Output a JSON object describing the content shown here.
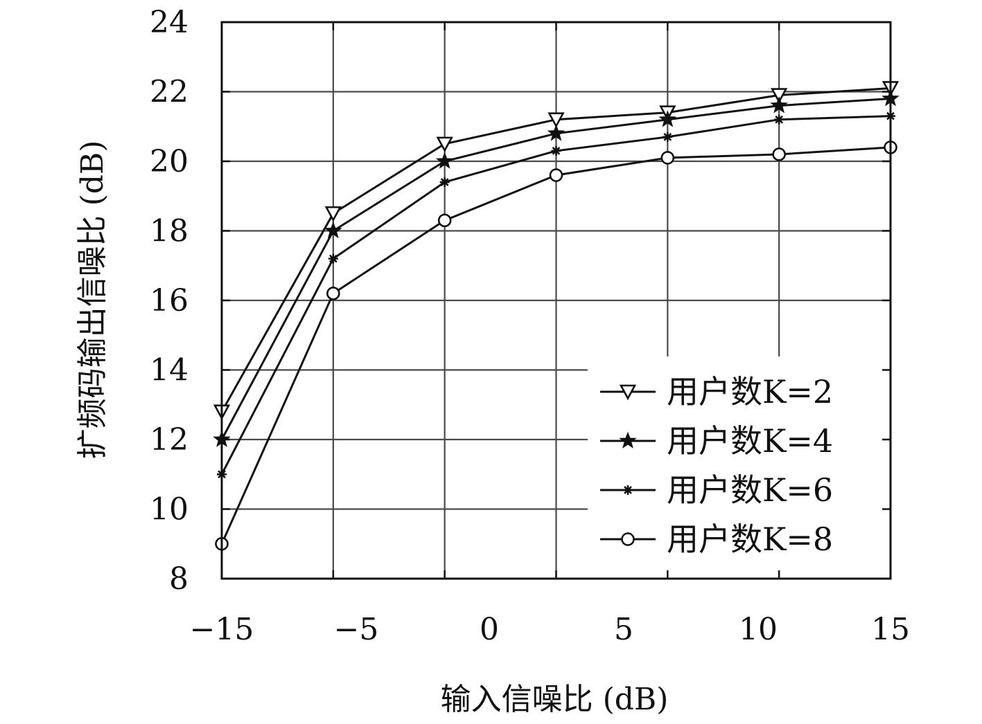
{
  "chart_data": {
    "type": "line",
    "title": "",
    "xlabel": "输入信噪比 (dB)",
    "ylabel": "扩频码输出信噪比 (dB)",
    "xticks": [
      "−15",
      "−5",
      "0",
      "5",
      "10",
      "15"
    ],
    "yticks": [
      "8",
      "10",
      "12",
      "14",
      "16",
      "18",
      "20",
      "22",
      "24"
    ],
    "ylim": [
      8,
      24
    ],
    "grid": true,
    "legend_position": "bottom-right",
    "series": [
      {
        "name": "用户数K=2",
        "marker": "triangle-down",
        "values": [
          12.8,
          18.5,
          20.5,
          21.2,
          21.4,
          21.9,
          22.1
        ]
      },
      {
        "name": "用户数K=4",
        "marker": "star",
        "values": [
          12.0,
          18.0,
          20.0,
          20.8,
          21.2,
          21.6,
          21.8
        ]
      },
      {
        "name": "用户数K=6",
        "marker": "asterisk",
        "values": [
          11.0,
          17.2,
          19.4,
          20.3,
          20.7,
          21.2,
          21.3
        ]
      },
      {
        "name": "用户数K=8",
        "marker": "circle",
        "values": [
          9.0,
          16.2,
          18.3,
          19.6,
          20.1,
          20.2,
          20.4
        ]
      }
    ],
    "colors": {
      "line": "#111111",
      "grid": "#4a4a4a",
      "axis": "#111111"
    }
  }
}
